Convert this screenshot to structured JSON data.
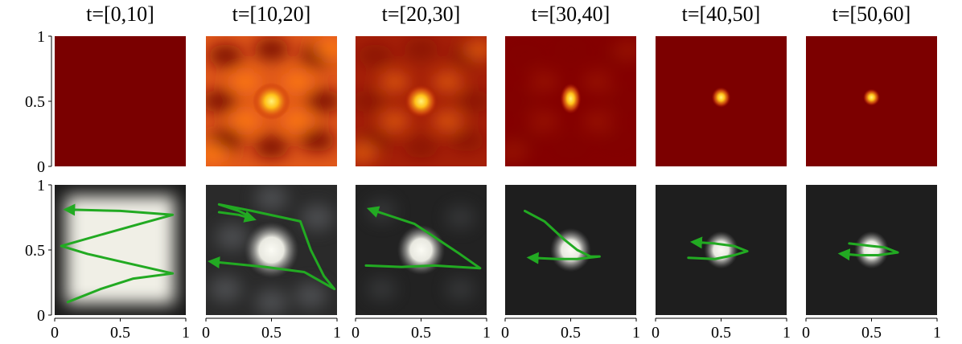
{
  "chart_data": {
    "type": "heatmap",
    "panel_titles": [
      "t=[0,10]",
      "t=[10,20]",
      "t=[20,30]",
      "t=[30,40]",
      "t=[40,50]",
      "t=[50,60]"
    ],
    "x_ticks": [
      "0",
      "0.5",
      "1"
    ],
    "y_ticks": [
      "0",
      "0.5",
      "1"
    ],
    "xlim": [
      0,
      1
    ],
    "ylim": [
      0,
      1
    ],
    "top_row": {
      "colormap": "hot",
      "panels": [
        {
          "blob": null,
          "background": "#7a0000",
          "texture": 0
        },
        {
          "blob": {
            "x": 0.5,
            "y": 0.5,
            "rx": 0.09,
            "ry": 0.11
          },
          "background": "#e0581a",
          "texture": 1
        },
        {
          "blob": {
            "x": 0.5,
            "y": 0.5,
            "rx": 0.08,
            "ry": 0.1
          },
          "background": "#a52008",
          "texture": 0.6
        },
        {
          "blob": {
            "x": 0.5,
            "y": 0.52,
            "rx": 0.05,
            "ry": 0.09
          },
          "background": "#840000",
          "texture": 0.15
        },
        {
          "blob": {
            "x": 0.5,
            "y": 0.53,
            "rx": 0.045,
            "ry": 0.06
          },
          "background": "#7c0000",
          "texture": 0
        },
        {
          "blob": {
            "x": 0.5,
            "y": 0.53,
            "rx": 0.04,
            "ry": 0.05
          },
          "background": "#7c0000",
          "texture": 0
        }
      ]
    },
    "bottom_row": {
      "colormap": "gray",
      "panels": [
        {
          "blob": null,
          "glow": "square",
          "background": "#1a1a1a",
          "trajectories": [
            [
              [
                0.1,
                0.1
              ],
              [
                0.35,
                0.2
              ],
              [
                0.6,
                0.28
              ],
              [
                0.9,
                0.32
              ],
              [
                0.55,
                0.4
              ],
              [
                0.25,
                0.47
              ],
              [
                0.05,
                0.53
              ],
              [
                0.4,
                0.63
              ],
              [
                0.65,
                0.7
              ],
              [
                0.9,
                0.77
              ],
              [
                0.5,
                0.8
              ],
              [
                0.1,
                0.81
              ]
            ]
          ]
        },
        {
          "blob": {
            "x": 0.5,
            "y": 0.5,
            "rx": 0.16,
            "ry": 0.18
          },
          "glow": "blob",
          "background": "#2a2a2a",
          "trajectories": [
            [
              [
                0.35,
                0.75
              ],
              [
                0.25,
                0.8
              ],
              [
                0.1,
                0.85
              ],
              [
                0.35,
                0.8
              ],
              [
                0.72,
                0.72
              ],
              [
                0.8,
                0.5
              ],
              [
                0.9,
                0.3
              ],
              [
                0.98,
                0.2
              ],
              [
                0.75,
                0.33
              ],
              [
                0.45,
                0.37
              ],
              [
                0.05,
                0.41
              ]
            ],
            [
              [
                0.1,
                0.79
              ],
              [
                0.25,
                0.77
              ],
              [
                0.35,
                0.74
              ]
            ]
          ]
        },
        {
          "blob": {
            "x": 0.5,
            "y": 0.5,
            "rx": 0.14,
            "ry": 0.16
          },
          "glow": "blob",
          "background": "#222222",
          "trajectories": [
            [
              [
                0.08,
                0.38
              ],
              [
                0.35,
                0.37
              ],
              [
                0.6,
                0.38
              ],
              [
                0.95,
                0.36
              ],
              [
                0.78,
                0.48
              ],
              [
                0.6,
                0.6
              ],
              [
                0.45,
                0.7
              ],
              [
                0.3,
                0.75
              ],
              [
                0.12,
                0.81
              ]
            ]
          ]
        },
        {
          "blob": {
            "x": 0.5,
            "y": 0.5,
            "rx": 0.12,
            "ry": 0.14
          },
          "glow": "blob",
          "background": "#1e1e1e",
          "trajectories": [
            [
              [
                0.15,
                0.8
              ],
              [
                0.3,
                0.72
              ],
              [
                0.45,
                0.58
              ],
              [
                0.55,
                0.5
              ],
              [
                0.65,
                0.45
              ],
              [
                0.72,
                0.45
              ],
              [
                0.55,
                0.43
              ],
              [
                0.4,
                0.43
              ],
              [
                0.2,
                0.44
              ]
            ]
          ]
        },
        {
          "blob": {
            "x": 0.5,
            "y": 0.5,
            "rx": 0.1,
            "ry": 0.12
          },
          "glow": "blob",
          "background": "#1e1e1e",
          "trajectories": [
            [
              [
                0.25,
                0.44
              ],
              [
                0.45,
                0.43
              ],
              [
                0.6,
                0.46
              ],
              [
                0.7,
                0.49
              ],
              [
                0.6,
                0.53
              ],
              [
                0.45,
                0.55
              ],
              [
                0.3,
                0.56
              ]
            ]
          ]
        },
        {
          "blob": {
            "x": 0.5,
            "y": 0.5,
            "rx": 0.1,
            "ry": 0.12
          },
          "glow": "blob",
          "background": "#1e1e1e",
          "trajectories": [
            [
              [
                0.33,
                0.55
              ],
              [
                0.5,
                0.53
              ],
              [
                0.6,
                0.52
              ],
              [
                0.7,
                0.48
              ],
              [
                0.55,
                0.46
              ],
              [
                0.4,
                0.46
              ],
              [
                0.28,
                0.47
              ]
            ]
          ]
        }
      ]
    },
    "trajectory_color": "#22aa22"
  }
}
